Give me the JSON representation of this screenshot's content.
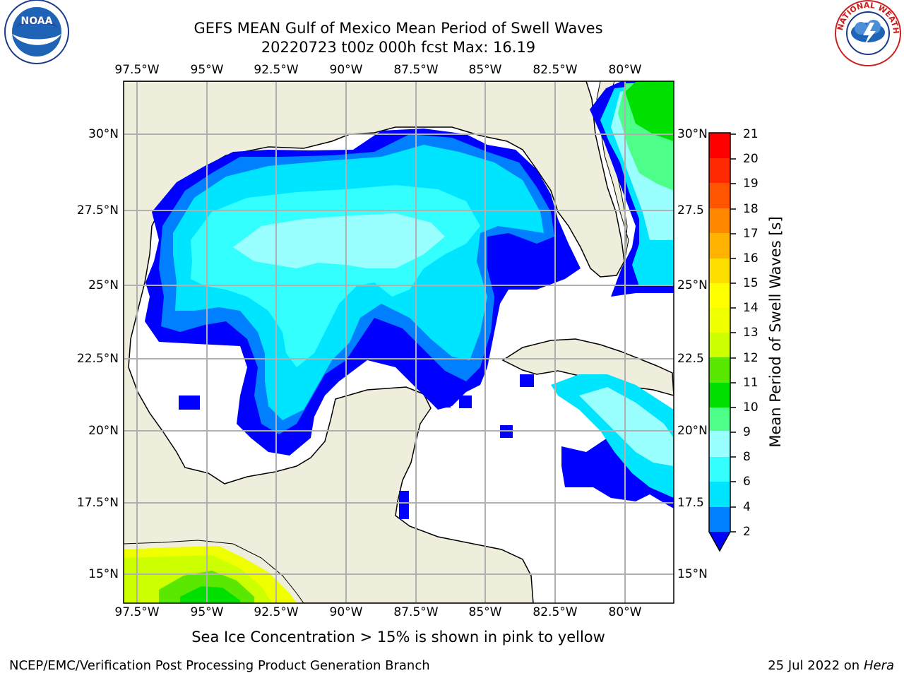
{
  "title": {
    "line1": "GEFS MEAN Gulf of Mexico Mean Period of Swell Waves",
    "line2": "20220723 t00z 000h fcst   Max: 16.19"
  },
  "logos": {
    "left": {
      "name": "noaa-logo",
      "text": "NOAA"
    },
    "right": {
      "name": "nws-logo",
      "text": "NATIONAL WEATHER SERVICE"
    }
  },
  "map": {
    "lon_ticks": [
      "97.5°W",
      "95°W",
      "92.5°W",
      "90°W",
      "87.5°W",
      "85°W",
      "82.5°W",
      "80°W"
    ],
    "lat_ticks_left": [
      "30°N",
      "27.5°N",
      "25°N",
      "22.5°N",
      "20°N",
      "17.5°N",
      "15°N"
    ],
    "lat_ticks_right": [
      "30°N",
      "27.5",
      "25°N",
      "22.5",
      "20°N",
      "17.5",
      "15°N"
    ],
    "colors": {
      "land": "#efeedc",
      "grid": "#b0b0b0",
      "coast": "#000000"
    }
  },
  "colorbar": {
    "label": "Mean Period of Swell Waves [s]",
    "ticks": [
      "21",
      "20",
      "19",
      "18",
      "17",
      "16",
      "15",
      "14",
      "13",
      "12",
      "11",
      "10",
      "9",
      "8",
      "6",
      "4",
      "2"
    ],
    "colors": [
      "#0000ff",
      "#0080ff",
      "#00e5ff",
      "#33ffff",
      "#99ffff",
      "#4dff88",
      "#00e000",
      "#5ae800",
      "#ccff00",
      "#f0ff00",
      "#ffff00",
      "#ffdf00",
      "#ffb300",
      "#ff8800",
      "#ff5500",
      "#ff2800",
      "#ff0000"
    ]
  },
  "caption": "Sea Ice Concentration > 15% is shown in pink to yellow",
  "footer": {
    "left": "NCEP/EMC/Verification Post Processing Product Generation Branch",
    "right_date": "25 Jul 2022 on ",
    "right_host": "Hera"
  }
}
